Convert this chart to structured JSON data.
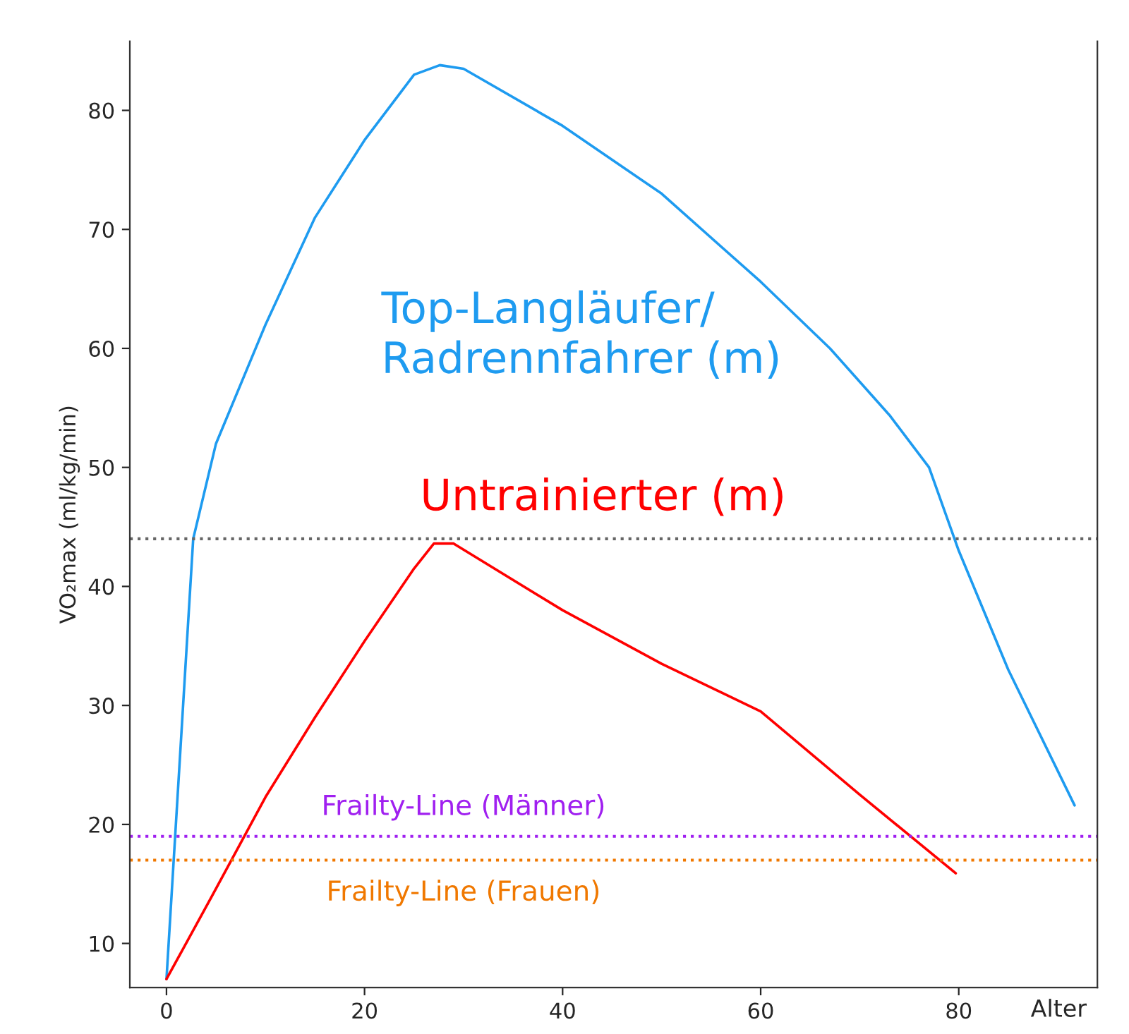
{
  "chart_data": {
    "type": "line",
    "xlabel": "Alter",
    "ylabel": "VO₂max (ml/kg/min)",
    "series": [
      {
        "name": "Top-Langläufer/\nRadrennfahrer (m)",
        "color": "#1e9bf0",
        "x": [
          0,
          2.7,
          5,
          10,
          15,
          20,
          25,
          27.6,
          30,
          40,
          50,
          60,
          67,
          73,
          77,
          80,
          85,
          91.7
        ],
        "values": [
          7,
          44,
          52,
          62,
          71,
          77.5,
          83,
          83.8,
          83.5,
          78.7,
          73,
          65.6,
          60,
          54.4,
          50,
          43,
          33,
          21.6
        ]
      },
      {
        "name": "Untrainierter (m)",
        "color": "#ff0000",
        "x": [
          0,
          5,
          10,
          15,
          20,
          25,
          27,
          29,
          40,
          50,
          60,
          70,
          79.7
        ],
        "values": [
          7,
          14.6,
          22.3,
          29,
          35.4,
          41.5,
          43.6,
          43.6,
          38,
          33.5,
          29.5,
          22.5,
          15.9
        ]
      }
    ],
    "xlim": [
      -3.7,
      94
    ],
    "ylim": [
      6.3,
      85.8
    ],
    "xticks": [
      0,
      20,
      40,
      60,
      80
    ],
    "yticks": [
      10,
      20,
      30,
      40,
      50,
      60,
      70,
      80
    ],
    "ref_lines": [
      {
        "axis": "y",
        "value": 44,
        "color": "#666666",
        "line_style": "dotted"
      },
      {
        "axis": "y",
        "value": 19,
        "label": "Frailty-Line (Männer)",
        "color": "#a020f0",
        "line_style": "dotted"
      },
      {
        "axis": "y",
        "value": 17,
        "label": "Frailty-Line (Frauen)",
        "color": "#f07800",
        "line_style": "dotted"
      }
    ],
    "grid": false,
    "legend": false,
    "marker": "none",
    "line_style": "solid"
  }
}
